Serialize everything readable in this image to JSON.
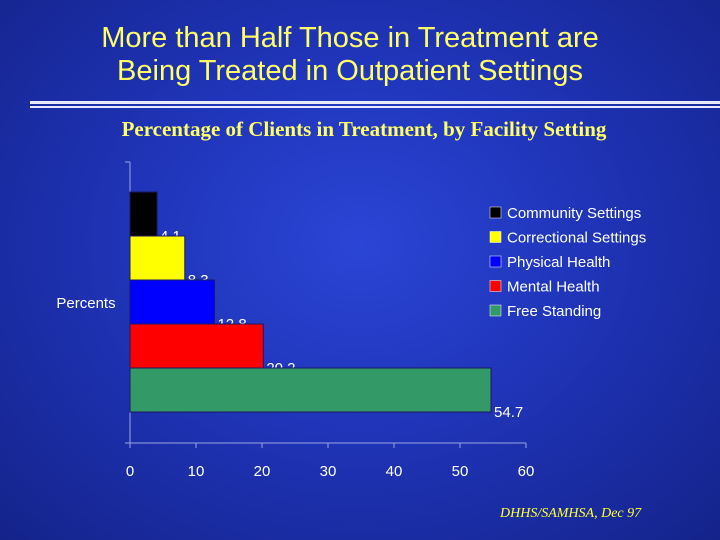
{
  "slide": {
    "title_line1": "More than Half Those in Treatment are",
    "title_line2": "Being Treated in Outpatient Settings",
    "credit": "DHHS/SAMHSA, Dec 97"
  },
  "chart_data": {
    "type": "bar",
    "orientation": "horizontal",
    "title": "Percentage of Clients in Treatment, by Facility Setting",
    "ylabel": "Percents",
    "xlabel": "",
    "xlim": [
      0,
      60
    ],
    "xticks": [
      "0",
      "10",
      "20",
      "30",
      "40",
      "50",
      "60"
    ],
    "grid": false,
    "legend_position": "top-right",
    "series": [
      {
        "name": "Community Settings",
        "value": 4.1,
        "color": "#000000"
      },
      {
        "name": "Correctional Settings",
        "value": 8.3,
        "color": "#ffff00"
      },
      {
        "name": "Physical Health",
        "value": 12.8,
        "color": "#0000ff"
      },
      {
        "name": "Mental Health",
        "value": 20.2,
        "color": "#ff0000"
      },
      {
        "name": "Free Standing",
        "value": 54.7,
        "color": "#339966"
      }
    ]
  }
}
